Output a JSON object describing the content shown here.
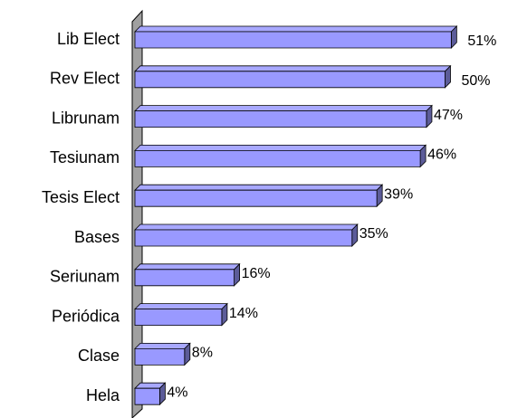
{
  "chart_data": {
    "type": "bar3d",
    "categories": [
      "Lib Elect",
      "Rev Elect",
      "Librunam",
      "Tesiunam",
      "Tesis Elect",
      "Bases",
      "Seriunam",
      "Periódica",
      "Clase",
      "Hela"
    ],
    "values": [
      51,
      50,
      47,
      46,
      39,
      35,
      16,
      14,
      8,
      4
    ],
    "value_labels": [
      "51%",
      "50%",
      "47%",
      "46%",
      "39%",
      "35%",
      "16%",
      "14%",
      "8%",
      "4%"
    ],
    "color": "#9999ff"
  }
}
